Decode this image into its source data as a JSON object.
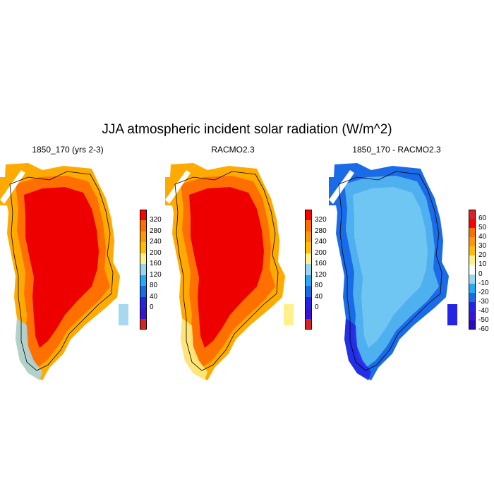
{
  "title": "JJA atmospheric incident solar radiation (W/m^2)",
  "panels": [
    {
      "title": "1850_170 (yrs 2-3)",
      "colorbar": {
        "labels": [
          "320",
          "280",
          "240",
          "200",
          "160",
          "120",
          "80",
          "40",
          "0"
        ],
        "colors": [
          "#ff0000",
          "#ff6f00",
          "#ff9900",
          "#ffbf00",
          "#fff08c",
          "#9ad6f2",
          "#27aaf5",
          "#1a6be8",
          "#2424e6",
          "#3a14d6",
          "#d42424"
        ]
      },
      "fill": {
        "interior": "#ee0000",
        "mid": "#ff7000",
        "edge": "#ffaa00",
        "rim": "#fff08c",
        "south": "#a6d8f0"
      }
    },
    {
      "title": "RACMO2.3",
      "colorbar": {
        "labels": [
          "320",
          "280",
          "240",
          "200",
          "160",
          "120",
          "80",
          "40",
          "0"
        ],
        "colors": [
          "#ff0000",
          "#ff6f00",
          "#ff9900",
          "#ffbf00",
          "#fff08c",
          "#9ad6f2",
          "#27aaf5",
          "#1a6be8",
          "#2424e6",
          "#3a14d6",
          "#d42424"
        ]
      },
      "fill": {
        "interior": "#ee0000",
        "mid": "#ff7000",
        "edge": "#ffaa00",
        "rim": "#fff08c",
        "south": "#fff08c"
      }
    },
    {
      "title": "1850_170 - RACMO2.3",
      "colorbar": {
        "labels": [
          "60",
          "50",
          "40",
          "30",
          "20",
          "10",
          "0",
          "-10",
          "-20",
          "-30",
          "-40",
          "-50",
          "-60"
        ],
        "colors": [
          "#d42424",
          "#ff0000",
          "#ff6f00",
          "#ff9900",
          "#ffbf00",
          "#fff08c",
          "#ffffff",
          "#9ad6f2",
          "#27aaf5",
          "#1a6be8",
          "#2424e6",
          "#3a14d6",
          "#2a0ac0"
        ]
      },
      "fill": {
        "interior": "#6fc6f2",
        "mid": "#4fb0f0",
        "edge": "#1a6be8",
        "rim": "#2424e6",
        "south": "#2424e6"
      }
    }
  ]
}
